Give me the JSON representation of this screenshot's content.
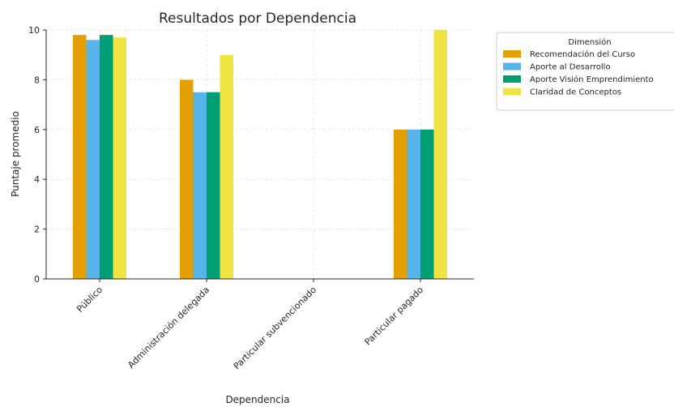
{
  "chart_data": {
    "type": "bar",
    "title": "Resultados por Dependencia",
    "xlabel": "Dependencia",
    "ylabel": "Puntaje promedio",
    "ylim": [
      0,
      10
    ],
    "yticks": [
      0,
      2,
      4,
      6,
      8,
      10
    ],
    "grid": true,
    "legend_title": "Dimensión",
    "legend_position": "outside-right-top",
    "categories": [
      "Público",
      "Administración delegada",
      "Particular subvencionado",
      "Particular pagado"
    ],
    "series": [
      {
        "name": "Recomendación del Curso",
        "color": "#E69F00",
        "values": [
          9.8,
          8.0,
          0,
          6.0
        ]
      },
      {
        "name": "Aporte al Desarrollo",
        "color": "#56B4E9",
        "values": [
          9.6,
          7.5,
          0,
          6.0
        ]
      },
      {
        "name": "Aporte Visión Emprendimiento",
        "color": "#009E73",
        "values": [
          9.8,
          7.5,
          0,
          6.0
        ]
      },
      {
        "name": "Claridad de Conceptos",
        "color": "#F0E442",
        "values": [
          9.7,
          9.0,
          0,
          10.0
        ]
      }
    ]
  }
}
